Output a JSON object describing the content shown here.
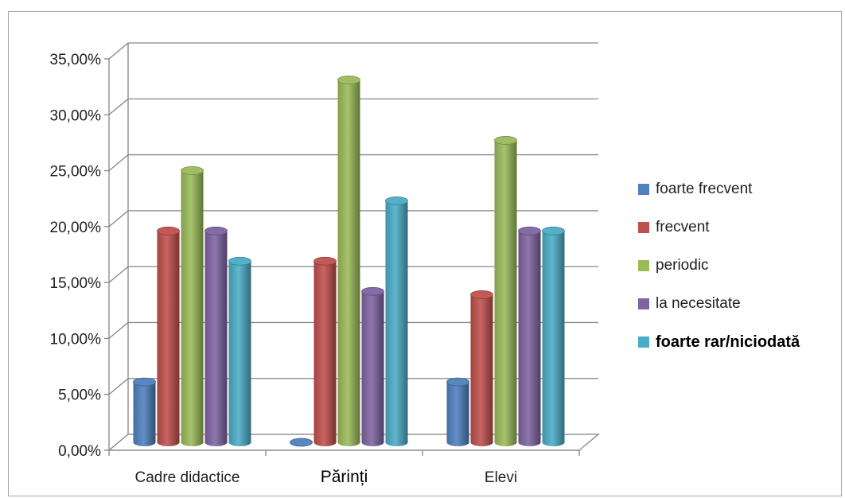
{
  "chart_data": {
    "type": "bar",
    "style": "3d-clustered-column",
    "categories": [
      "Cadre didactice",
      "Părinți",
      "Elevi"
    ],
    "series": [
      {
        "name": "foarte frecvent",
        "color": "#4f81bd",
        "values": [
          5.4,
          0.0,
          5.4
        ]
      },
      {
        "name": "frecvent",
        "color": "#c0504d",
        "values": [
          18.9,
          16.2,
          13.2
        ]
      },
      {
        "name": "periodic",
        "color": "#9bbb59",
        "values": [
          24.3,
          32.4,
          27.0
        ]
      },
      {
        "name": "la necesitate",
        "color": "#8064a2",
        "values": [
          18.9,
          13.5,
          18.9
        ]
      },
      {
        "name": "foarte rar/niciodată",
        "color": "#4bacc6",
        "values": [
          16.2,
          21.6,
          18.9
        ]
      }
    ],
    "ylim": [
      0,
      35
    ],
    "yticks": [
      0,
      5,
      10,
      15,
      20,
      25,
      30,
      35
    ],
    "ytick_labels": [
      "0,00%",
      "5,00%",
      "10,00%",
      "15,00%",
      "20,00%",
      "25,00%",
      "30,00%",
      "35,00%"
    ],
    "grid": true,
    "legend_position": "right",
    "title": "",
    "xlabel": "",
    "ylabel": ""
  }
}
